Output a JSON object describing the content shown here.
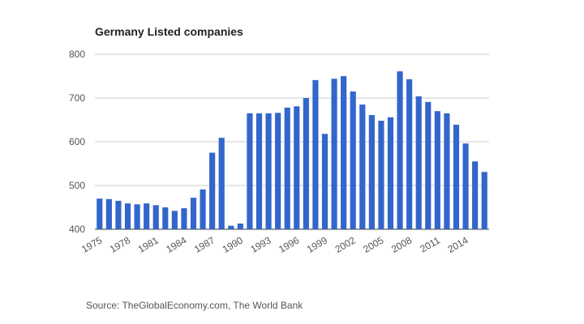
{
  "chart_data": {
    "type": "bar",
    "title": "Germany Listed companies",
    "xlabel": "",
    "ylabel": "",
    "ylim": [
      400,
      800
    ],
    "y_ticks": [
      400,
      500,
      600,
      700,
      800
    ],
    "grid": true,
    "bar_color": "#3366cc",
    "categories": [
      "1975",
      "1976",
      "1977",
      "1978",
      "1979",
      "1980",
      "1981",
      "1982",
      "1983",
      "1984",
      "1985",
      "1986",
      "1987",
      "1988",
      "1989",
      "1990",
      "1991",
      "1992",
      "1993",
      "1994",
      "1995",
      "1996",
      "1997",
      "1998",
      "1999",
      "2000",
      "2001",
      "2002",
      "2003",
      "2004",
      "2005",
      "2006",
      "2007",
      "2008",
      "2009",
      "2010",
      "2011",
      "2012",
      "2013",
      "2014",
      "2015",
      "2016"
    ],
    "x_tick_labels": [
      "1975",
      "1978",
      "1981",
      "1984",
      "1987",
      "1990",
      "1993",
      "1996",
      "1999",
      "2002",
      "2005",
      "2008",
      "2011",
      "2014"
    ],
    "values": [
      470,
      469,
      465,
      459,
      457,
      459,
      455,
      450,
      442,
      448,
      472,
      491,
      575,
      609,
      408,
      413,
      665,
      665,
      665,
      666,
      678,
      681,
      700,
      741,
      618,
      744,
      750,
      715,
      685,
      661,
      648,
      656,
      761,
      743,
      704,
      691,
      670,
      665,
      639,
      596,
      555,
      531
    ]
  },
  "footer": {
    "source": "Source: TheGlobalEconomy.com, The World Bank"
  }
}
